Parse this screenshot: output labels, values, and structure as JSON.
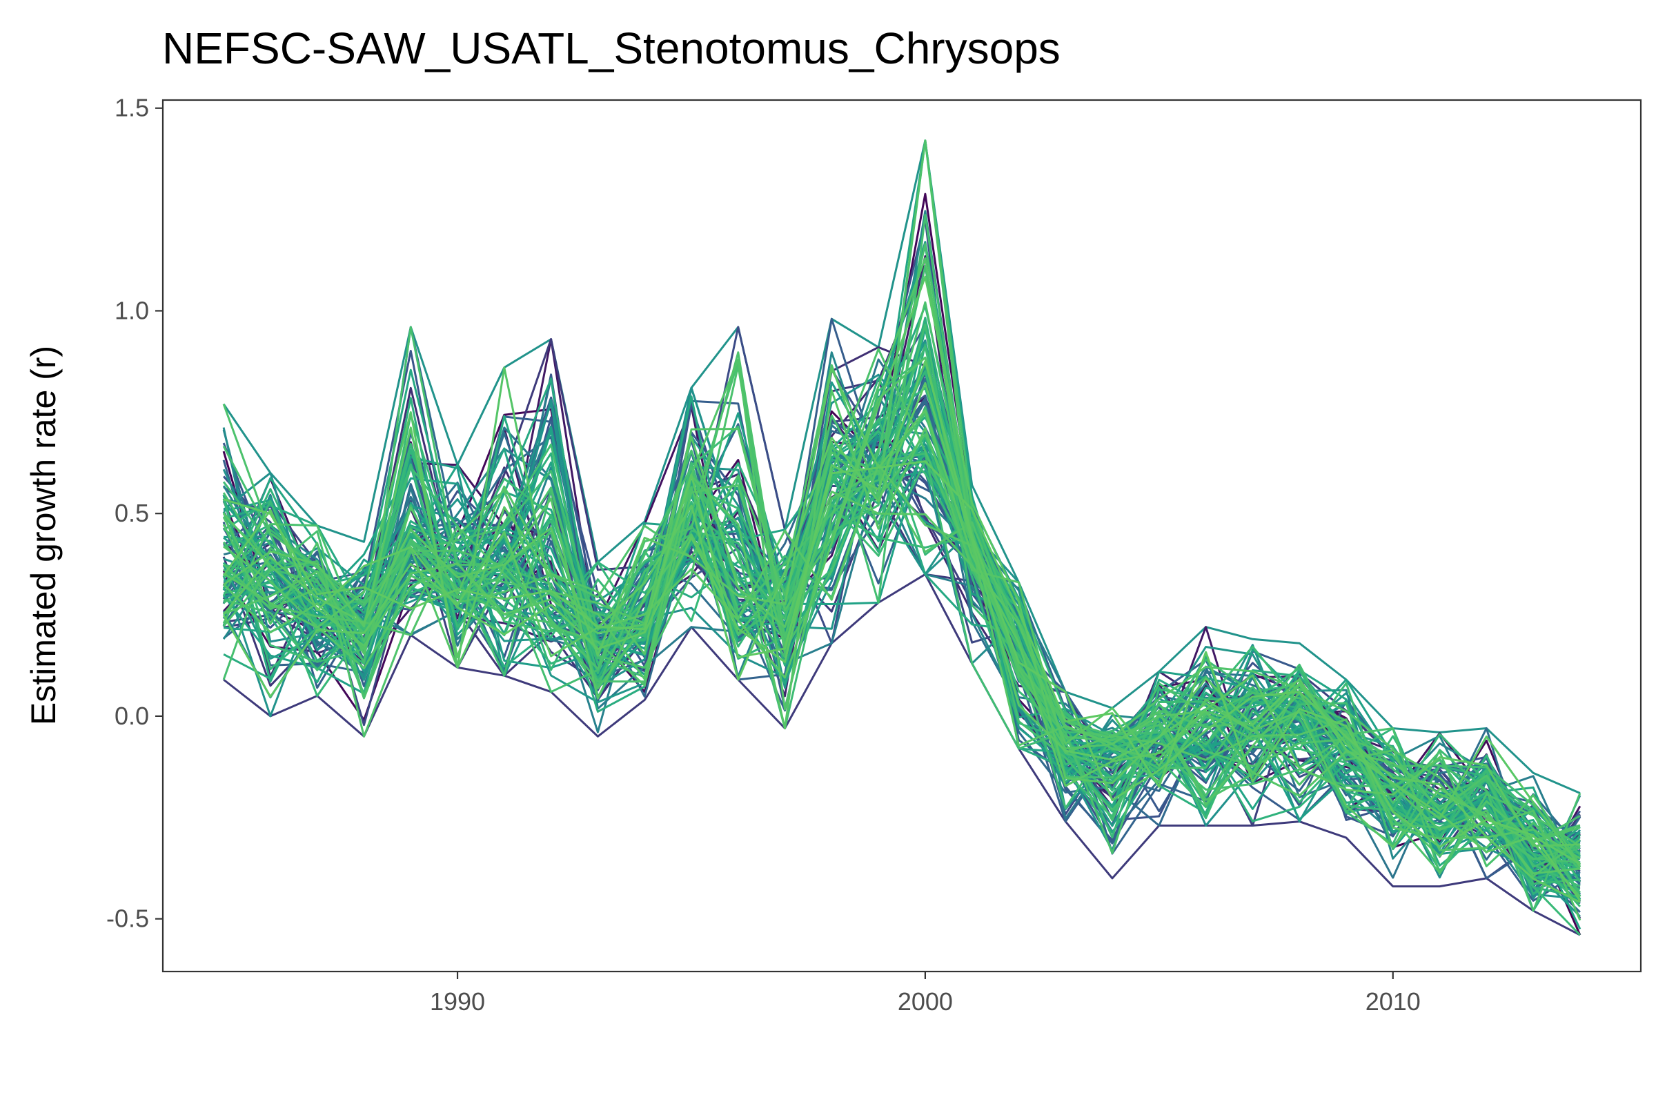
{
  "chart_data": {
    "type": "line",
    "title": "NEFSC-SAW_USATL_Stenotomus_Chrysops",
    "xlabel": "",
    "ylabel": "Estimated growth rate (r)",
    "xlim": [
      1983.7,
      2015.3
    ],
    "ylim": [
      -0.63,
      1.52
    ],
    "x_ticks": [
      1990,
      2000,
      2010
    ],
    "x_tick_labels": [
      "1990",
      "2000",
      "2010"
    ],
    "y_ticks": [
      1.5,
      1.0,
      0.5,
      0.0,
      -0.5
    ],
    "y_tick_labels": [
      "1.5",
      "1.0",
      "0.5",
      "0.0",
      "-0.5"
    ],
    "grid": false,
    "legend": "none",
    "x": [
      1985,
      1986,
      1987,
      1988,
      1989,
      1990,
      1991,
      1992,
      1993,
      1994,
      1995,
      1996,
      1997,
      1998,
      1999,
      2000,
      2001,
      2002,
      2003,
      2004,
      2005,
      2006,
      2007,
      2008,
      2009,
      2010,
      2011,
      2012,
      2013,
      2014
    ],
    "central_trend": [
      0.4,
      0.36,
      0.25,
      0.21,
      0.45,
      0.34,
      0.38,
      0.36,
      0.17,
      0.25,
      0.5,
      0.32,
      0.26,
      0.57,
      0.6,
      0.72,
      0.4,
      0.16,
      -0.08,
      -0.09,
      -0.06,
      -0.04,
      0.01,
      0.01,
      -0.06,
      -0.18,
      -0.22,
      -0.21,
      -0.34,
      -0.36
    ],
    "lower_envelope": [
      0.09,
      0.0,
      0.05,
      -0.05,
      0.2,
      0.12,
      0.1,
      0.06,
      -0.05,
      0.04,
      0.22,
      0.09,
      -0.03,
      0.18,
      0.28,
      0.35,
      0.13,
      -0.08,
      -0.26,
      -0.4,
      -0.27,
      -0.27,
      -0.27,
      -0.26,
      -0.3,
      -0.42,
      -0.42,
      -0.4,
      -0.48,
      -0.54
    ],
    "upper_envelope": [
      0.77,
      0.6,
      0.47,
      0.43,
      0.96,
      0.62,
      0.86,
      0.93,
      0.38,
      0.48,
      0.81,
      0.96,
      0.46,
      0.98,
      0.91,
      1.42,
      0.57,
      0.33,
      0.06,
      0.02,
      0.11,
      0.22,
      0.19,
      0.18,
      0.09,
      -0.03,
      -0.04,
      -0.03,
      -0.14,
      -0.19
    ],
    "series_count": 100,
    "colormap": [
      "#440154",
      "#3b528b",
      "#31688e",
      "#21908c",
      "#20a386",
      "#35b779",
      "#4ac16d",
      "#5ec962"
    ],
    "colormap_name": "viridis"
  }
}
